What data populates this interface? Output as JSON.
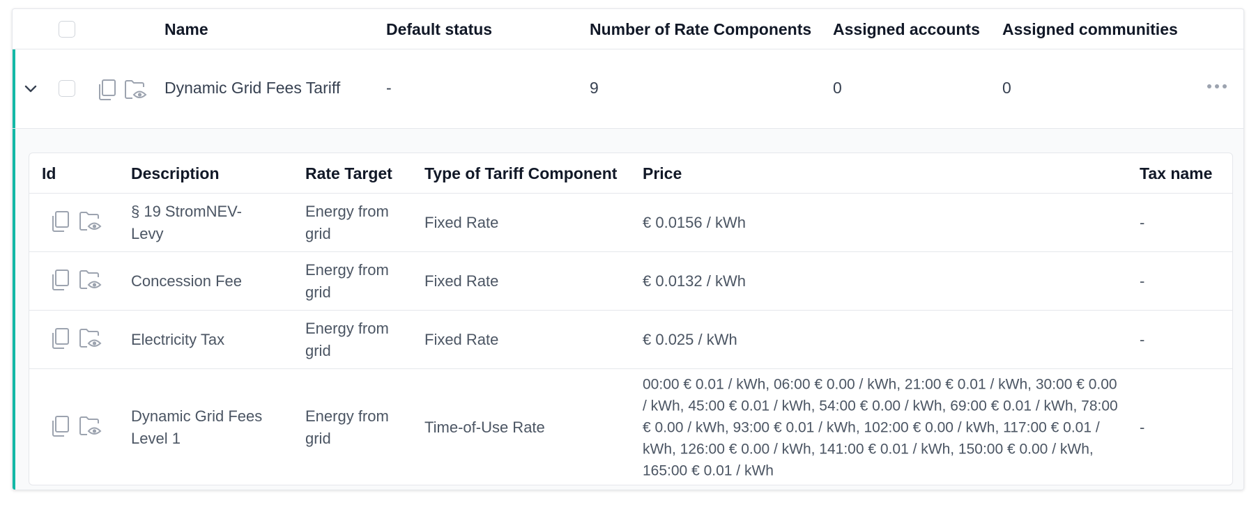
{
  "table": {
    "headers": {
      "name": "Name",
      "default_status": "Default status",
      "rate_components": "Number of Rate Components",
      "assigned_accounts": "Assigned accounts",
      "assigned_communities": "Assigned communities"
    },
    "row": {
      "name": "Dynamic Grid Fees Tariff",
      "default_status": "-",
      "rate_components": "9",
      "assigned_accounts": "0",
      "assigned_communities": "0"
    },
    "icons": {
      "expand": "chevron-down-icon",
      "copy": "copy-icon",
      "view": "folder-eye-icon",
      "more": "more-horizontal-icon"
    }
  },
  "components": {
    "headers": {
      "id": "Id",
      "description": "Description",
      "rate_target": "Rate Target",
      "type": "Type of Tariff Component",
      "price": "Price",
      "tax_name": "Tax name"
    },
    "rows": [
      {
        "description": "§ 19 StromNEV-Levy",
        "rate_target": "Energy from grid",
        "type": "Fixed Rate",
        "price": "€ 0.0156 / kWh",
        "tax_name": "-"
      },
      {
        "description": "Concession Fee",
        "rate_target": "Energy from grid",
        "type": "Fixed Rate",
        "price": "€ 0.0132 / kWh",
        "tax_name": "-"
      },
      {
        "description": "Electricity Tax",
        "rate_target": "Energy from grid",
        "type": "Fixed Rate",
        "price": "€ 0.025 / kWh",
        "tax_name": "-"
      },
      {
        "description": "Dynamic Grid Fees Level 1",
        "rate_target": "Energy from grid",
        "type": "Time-of-Use Rate",
        "price": "00:00 € 0.01 / kWh, 06:00 € 0.00 / kWh, 21:00 € 0.01 / kWh, 30:00 € 0.00 / kWh, 45:00 € 0.01 / kWh, 54:00 € 0.00 / kWh, 69:00 € 0.01 / kWh, 78:00 € 0.00 / kWh, 93:00 € 0.01 / kWh, 102:00 € 0.00 / kWh, 117:00 € 0.01 / kWh, 126:00 € 0.00 / kWh, 141:00 € 0.01 / kWh, 150:00 € 0.00 / kWh, 165:00 € 0.01 / kWh",
        "tax_name": "-"
      }
    ]
  },
  "colors": {
    "accent": "#14b8a6",
    "icon": "#9ca3af",
    "border": "#e5e7eb"
  }
}
